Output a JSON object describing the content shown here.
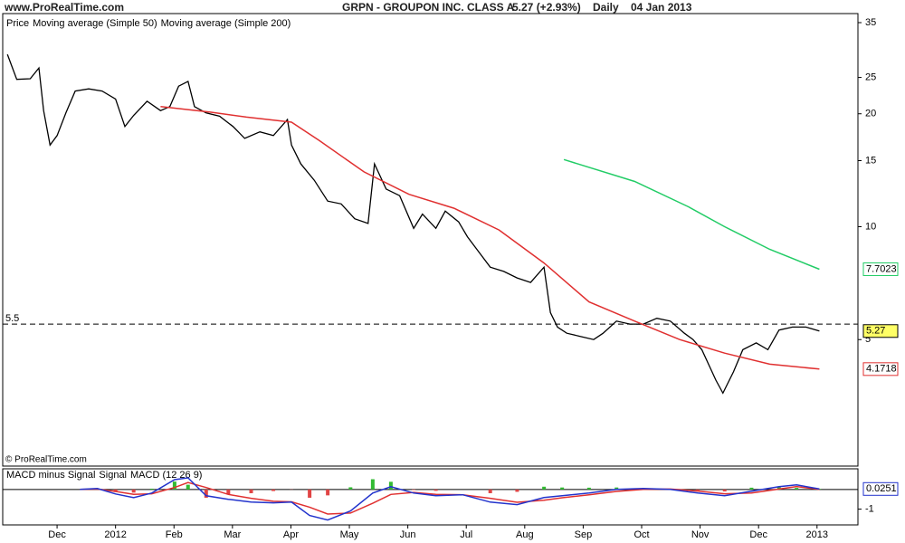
{
  "header": {
    "site": "www.ProRealTime.com",
    "title": "GRPN - GROUPON INC. CLASS A",
    "change": "5.27 (+2.93%)",
    "period": "Daily",
    "date": "04 Jan 2013"
  },
  "footer": "© ProRealTime.com",
  "chart_data": [
    {
      "type": "line",
      "log_scale": true,
      "grid": false,
      "xlim": [
        0.07,
        14.7
      ],
      "ylim": [
        2.3,
        37
      ],
      "yticks": [
        5,
        10,
        15,
        20,
        25,
        35
      ],
      "hline": 5.5,
      "hline_color": "#000000",
      "series": [
        {
          "name": "Price",
          "color": "#000000",
          "last_label": true,
          "label_fill": "#ffff66",
          "x": [
            0.15,
            0.31,
            0.54,
            0.69,
            0.77,
            0.88,
            1.0,
            1.15,
            1.31,
            1.54,
            1.77,
            2.0,
            2.16,
            2.31,
            2.54,
            2.77,
            2.93,
            3.08,
            3.24,
            3.35,
            3.55,
            3.78,
            4.01,
            4.21,
            4.47,
            4.7,
            4.94,
            5.01,
            5.17,
            5.4,
            5.63,
            5.86,
            6.09,
            6.32,
            6.43,
            6.63,
            6.86,
            7.1,
            7.25,
            7.48,
            7.64,
            7.87,
            8.02,
            8.18,
            8.41,
            8.64,
            8.87,
            9.1,
            9.33,
            9.44,
            9.56,
            9.72,
            9.95,
            10.18,
            10.34,
            10.57,
            10.8,
            11.03,
            11.26,
            11.49,
            11.73,
            11.88,
            12.03,
            12.27,
            12.39,
            12.57,
            12.73,
            12.96,
            13.16,
            13.35,
            13.58,
            13.81,
            14.04
          ],
          "values": [
            28.8,
            24.7,
            24.8,
            26.5,
            20.4,
            16.5,
            17.5,
            20.1,
            23.0,
            23.3,
            23.0,
            21.9,
            18.5,
            19.8,
            21.6,
            20.4,
            20.9,
            23.7,
            24.4,
            20.9,
            20.1,
            19.7,
            18.5,
            17.2,
            17.9,
            17.5,
            19.3,
            16.5,
            14.7,
            13.3,
            11.7,
            11.5,
            10.5,
            10.2,
            14.7,
            12.6,
            12.1,
            9.9,
            10.8,
            9.9,
            11.0,
            10.3,
            9.4,
            8.7,
            7.8,
            7.6,
            7.3,
            7.1,
            7.8,
            5.9,
            5.4,
            5.2,
            5.1,
            5.0,
            5.2,
            5.6,
            5.5,
            5.5,
            5.7,
            5.6,
            5.2,
            5.0,
            4.7,
            3.9,
            3.6,
            4.1,
            4.7,
            4.9,
            4.7,
            5.3,
            5.4,
            5.4,
            5.27
          ]
        },
        {
          "name": "Moving average (Simple 50)",
          "color": "#e03030",
          "last_label": true,
          "label_fill": "#ffffff",
          "x": [
            2.77,
            3.62,
            4.24,
            5.01,
            5.48,
            6.25,
            7.02,
            7.79,
            8.56,
            9.33,
            10.1,
            10.88,
            11.65,
            12.42,
            13.19,
            14.04
          ],
          "values": [
            20.9,
            20.2,
            19.6,
            19.0,
            17.0,
            14.0,
            12.2,
            11.2,
            9.8,
            8.0,
            6.3,
            5.6,
            5.0,
            4.6,
            4.3,
            4.1718
          ]
        },
        {
          "name": "Moving average (Simple 200)",
          "color": "#22cc66",
          "last_label": true,
          "label_fill": "#ffffff",
          "x": [
            9.67,
            10.88,
            11.8,
            12.42,
            13.19,
            14.04
          ],
          "values": [
            15.1,
            13.2,
            11.3,
            10.0,
            8.7,
            7.7023
          ]
        }
      ]
    },
    {
      "type": "line",
      "log_scale": false,
      "grid": false,
      "xlim": [
        0.07,
        14.7
      ],
      "ylim": [
        -1.8,
        1.05
      ],
      "yticks": [
        -1
      ],
      "xticks": [
        {
          "value": 1,
          "label": "Dec"
        },
        {
          "value": 2,
          "label": "2012"
        },
        {
          "value": 3,
          "label": "Feb"
        },
        {
          "value": 4,
          "label": "Mar"
        },
        {
          "value": 5,
          "label": "Apr"
        },
        {
          "value": 6,
          "label": "May"
        },
        {
          "value": 7,
          "label": "Jun"
        },
        {
          "value": 8,
          "label": "Jul"
        },
        {
          "value": 9,
          "label": "Aug"
        },
        {
          "value": 10,
          "label": "Sep"
        },
        {
          "value": 11,
          "label": "Oct"
        },
        {
          "value": 12,
          "label": "Nov"
        },
        {
          "value": 13,
          "label": "Dec"
        },
        {
          "value": 14,
          "label": "2013"
        }
      ],
      "x": [
        1.39,
        1.69,
        2.0,
        2.31,
        2.62,
        3.01,
        3.24,
        3.55,
        3.93,
        4.32,
        4.7,
        5.01,
        5.32,
        5.63,
        6.02,
        6.4,
        6.71,
        7.1,
        7.48,
        7.94,
        8.41,
        8.87,
        9.33,
        9.64,
        10.1,
        10.57,
        11.03,
        11.49,
        11.96,
        12.42,
        12.88,
        13.35,
        13.65,
        14.04
      ],
      "series": [
        {
          "name": "MACD minus Signal",
          "style": "bar",
          "color": "#33bb33",
          "down_color": "#e04444",
          "values": [
            0,
            0.03,
            -0.13,
            -0.16,
            0.04,
            0.4,
            0.24,
            -0.42,
            -0.25,
            -0.19,
            -0.08,
            -0.01,
            -0.42,
            -0.3,
            0.11,
            0.52,
            0.39,
            -0.03,
            -0.07,
            0,
            -0.19,
            -0.12,
            0.14,
            0.1,
            0.09,
            0.1,
            0.05,
            -0.02,
            -0.1,
            -0.1,
            0.09,
            0.12,
            0.08,
            0.0251
          ]
        },
        {
          "name": "Signal",
          "color": "#e03030",
          "values": [
            0,
            0.02,
            -0.1,
            -0.25,
            -0.22,
            0.1,
            0.35,
            0.1,
            -0.25,
            -0.45,
            -0.6,
            -0.63,
            -0.9,
            -1.25,
            -1.2,
            -0.7,
            -0.25,
            -0.15,
            -0.25,
            -0.27,
            -0.45,
            -0.65,
            -0.55,
            -0.42,
            -0.27,
            -0.1,
            0,
            0.02,
            -0.08,
            -0.22,
            -0.18,
            0.02,
            0.15,
            0
          ]
        },
        {
          "name": "MACD (12 26 9)",
          "color": "#2233cc",
          "last_label": true,
          "label_fill": "#ffffff",
          "values": [
            0,
            0.05,
            -0.23,
            -0.41,
            -0.18,
            0.5,
            0.59,
            -0.32,
            -0.5,
            -0.64,
            -0.68,
            -0.64,
            -1.32,
            -1.55,
            -1.09,
            -0.18,
            0.14,
            -0.18,
            -0.32,
            -0.27,
            -0.64,
            -0.77,
            -0.41,
            -0.32,
            -0.18,
            0,
            0.05,
            0,
            -0.18,
            -0.32,
            -0.09,
            0.14,
            0.23,
            0.0251
          ]
        }
      ]
    }
  ]
}
